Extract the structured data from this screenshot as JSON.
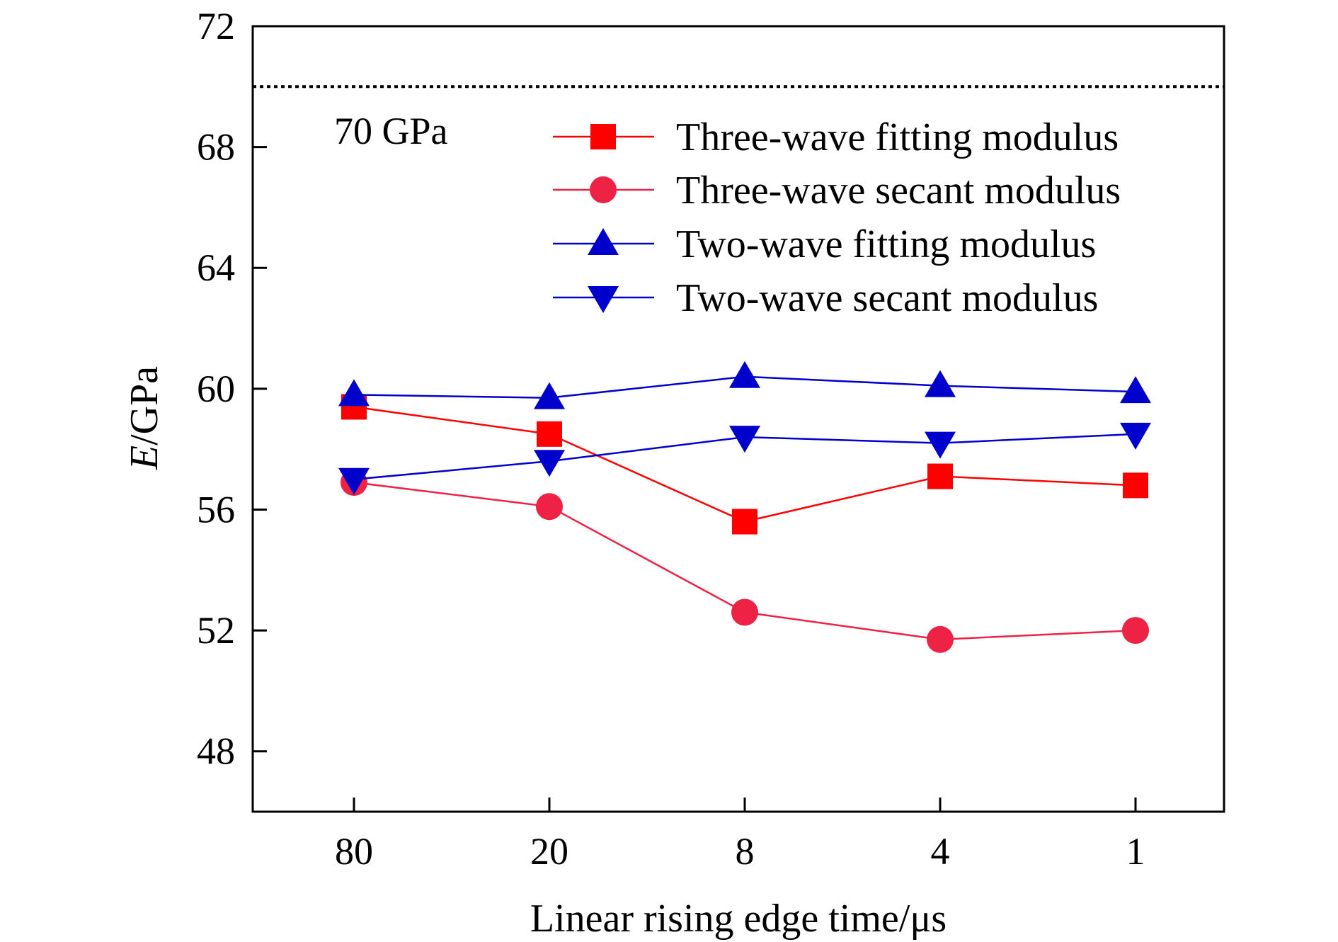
{
  "chart_data": {
    "type": "line",
    "categories": [
      "80",
      "20",
      "8",
      "4",
      "1"
    ],
    "xlabel": "Linear rising edge time/μs",
    "ylabel": {
      "italic": "E",
      "rest": "/GPa"
    },
    "ylim": [
      46,
      72
    ],
    "yticks": [
      "48",
      "52",
      "56",
      "60",
      "64",
      "68",
      "72"
    ],
    "grid": false,
    "legend_position": "top-right",
    "reference_line": {
      "value": 70,
      "label": "70 GPa",
      "style": "dotted"
    },
    "series": [
      {
        "name": "Three-wave fitting modulus",
        "marker": "square",
        "color": "#ff0000",
        "values": [
          59.4,
          58.5,
          55.6,
          57.1,
          56.8
        ]
      },
      {
        "name": "Three-wave secant modulus",
        "marker": "circle",
        "color": "#ee2244",
        "values": [
          56.9,
          56.1,
          52.6,
          51.7,
          52.0
        ]
      },
      {
        "name": "Two-wave fitting modulus",
        "marker": "triangle-up",
        "color": "#0000cc",
        "values": [
          59.8,
          59.7,
          60.4,
          60.1,
          59.9
        ]
      },
      {
        "name": "Two-wave secant modulus",
        "marker": "triangle-down",
        "color": "#0000cc",
        "values": [
          57.0,
          57.6,
          58.4,
          58.2,
          58.5
        ]
      }
    ]
  }
}
